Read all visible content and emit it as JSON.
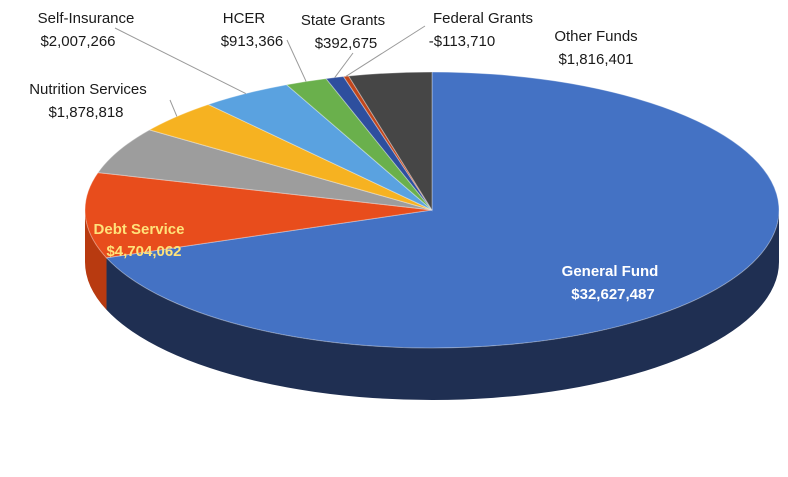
{
  "chart_data": {
    "type": "pie",
    "style": "3d",
    "slices": [
      {
        "label": "General Fund",
        "value": 32627487,
        "value_label": "$32,627,487",
        "color": "#4472c4",
        "side_color": "#1f2f52",
        "label_color": "#ffffff"
      },
      {
        "label": "Debt Service",
        "value": 4704062,
        "value_label": "$4,704,062",
        "color": "#e84d1c",
        "side_color": "#b83a10",
        "label_color": "#ffe27a"
      },
      {
        "label": "",
        "value": 2580000,
        "value_label": "",
        "color": "#9d9d9d",
        "side_color": "#6e6e6e",
        "label_color": ""
      },
      {
        "label": "Nutrition Services",
        "value": 1878818,
        "value_label": "$1,878,818",
        "color": "#f6b221",
        "side_color": "#b07c10",
        "label_color": ""
      },
      {
        "label": "Self-Insurance",
        "value": 2007266,
        "value_label": "$2,007,266",
        "color": "#5aa2e0",
        "side_color": "#2f6aa0",
        "label_color": ""
      },
      {
        "label": "HCER",
        "value": 913366,
        "value_label": "$913,366",
        "color": "#6ab04c",
        "side_color": "#3f7a2e",
        "label_color": ""
      },
      {
        "label": "State Grants",
        "value": 392675,
        "value_label": "$392,675",
        "color": "#2e4f9e",
        "side_color": "#1c3266",
        "label_color": ""
      },
      {
        "label": "Federal Grants",
        "value": -113710,
        "value_label": "-$113,710",
        "color": "#c0461c",
        "side_color": "#8a2f10",
        "label_color": ""
      },
      {
        "label": "Other Funds",
        "value": 1816401,
        "value_label": "$1,816,401",
        "color": "#464646",
        "side_color": "#262626",
        "label_color": ""
      }
    ]
  }
}
